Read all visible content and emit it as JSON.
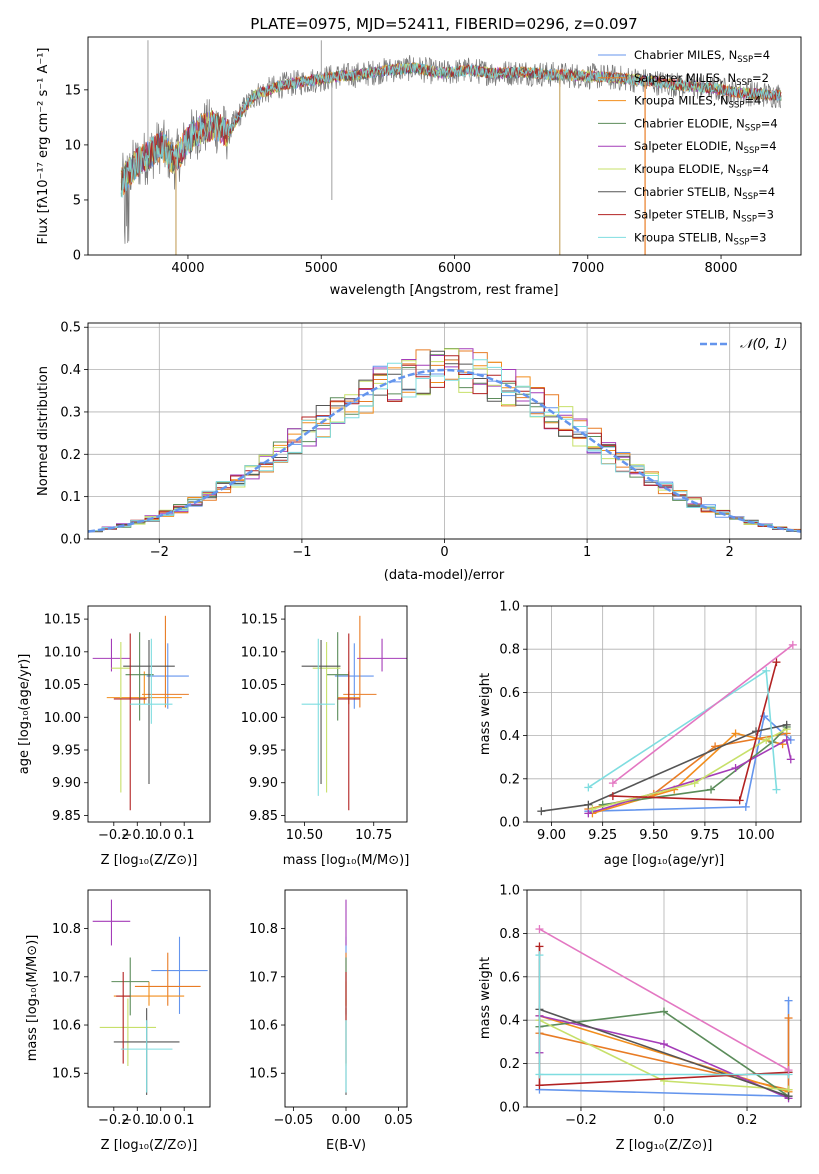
{
  "colors": [
    "#6495ed",
    "#e87c25",
    "#f28e1c",
    "#5b8c5a",
    "#a43cb8",
    "#c7e06a",
    "#555555",
    "#b22222",
    "#7fdde0"
  ],
  "chart_data": [
    {
      "type": "line",
      "id": "spectrum",
      "title": "PLATE=0975, MJD=52411, FIBERID=0296, z=0.097",
      "xlabel": "wavelength [Angstrom, rest frame]",
      "ylabel": "Flux [fλ10⁻¹⁷ erg cm⁻² s⁻¹ A⁻¹]",
      "xlim": [
        3250,
        8600
      ],
      "ylim": [
        0,
        19.8
      ],
      "xticks": [
        4000,
        5000,
        6000,
        7000,
        8000
      ],
      "yticks": [
        0,
        5,
        10,
        15
      ],
      "continuum": {
        "x": [
          3500,
          3600,
          3700,
          3800,
          3900,
          4000,
          4100,
          4200,
          4300,
          4400,
          4500,
          4700,
          4900,
          5100,
          5300,
          5500,
          5700,
          5900,
          6100,
          6300,
          6500,
          6700,
          6900,
          7100,
          7300,
          7500,
          7700,
          7900,
          8100,
          8300,
          8450
        ],
        "y": [
          6.5,
          8.2,
          9.0,
          10.0,
          8.5,
          10.5,
          11.5,
          11.8,
          11.0,
          13.0,
          14.5,
          15.4,
          15.8,
          16.2,
          16.4,
          16.8,
          17.0,
          16.5,
          16.8,
          16.5,
          16.6,
          16.4,
          16.3,
          16.2,
          16.0,
          15.7,
          15.4,
          15.2,
          14.8,
          14.6,
          14.5
        ]
      },
      "legend": [
        "Chabrier MILES, N_SSP=4",
        "Salpeter MILES, N_SSP=2",
        "Kroupa MILES, N_SSP=4",
        "Chabrier ELODIE, N_SSP=4",
        "Salpeter ELODIE, N_SSP=4",
        "Kroupa ELODIE, N_SSP=4",
        "Chabrier STELIB, N_SSP=4",
        "Salpeter STELIB, N_SSP=3",
        "Kroupa STELIB, N_SSP=3"
      ],
      "legend_placement": "upper-right"
    },
    {
      "type": "histogram",
      "id": "residuals",
      "xlabel": "(data-model)/error",
      "ylabel": "Normed distribution",
      "xlim": [
        -2.5,
        2.5
      ],
      "ylim": [
        0,
        0.51
      ],
      "xticks": [
        -2,
        -1,
        0,
        1,
        2
      ],
      "yticks": [
        0.0,
        0.1,
        0.2,
        0.3,
        0.4,
        0.5
      ],
      "legend": [
        "𝒩(0, 1)"
      ],
      "legend_placement": "upper-right",
      "grid": true
    },
    {
      "type": "scatter",
      "id": "age-vs-Z",
      "xlabel": "Z [log₁₀(Z/Z⊙)]",
      "ylabel": "age  [log₁₀(age/yr)]",
      "xlim": [
        -0.31,
        0.21
      ],
      "ylim": [
        9.84,
        10.17
      ],
      "xticks": [
        -0.2,
        -0.1,
        0.0,
        0.1
      ],
      "yticks": [
        9.85,
        9.9,
        9.95,
        10.0,
        10.05,
        10.1,
        10.15
      ],
      "points": [
        {
          "x": 0.03,
          "y": 10.063,
          "xerr": 0.09,
          "yerr": [
            0.05,
            0.05
          ]
        },
        {
          "x": 0.02,
          "y": 10.035,
          "xerr": 0.1,
          "yerr": [
            0.02,
            0.12
          ]
        },
        {
          "x": -0.07,
          "y": 10.03,
          "xerr": 0.16,
          "yerr": [
            0.01,
            0.04
          ]
        },
        {
          "x": -0.09,
          "y": 10.065,
          "xerr": 0.06,
          "yerr": [
            0.07,
            0.065
          ]
        },
        {
          "x": -0.21,
          "y": 10.09,
          "xerr": 0.08,
          "yerr": [
            0.02,
            0.03
          ]
        },
        {
          "x": -0.17,
          "y": 10.075,
          "xerr": 0.04,
          "yerr": [
            0.19,
            0.04
          ]
        },
        {
          "x": -0.05,
          "y": 10.078,
          "xerr": 0.11,
          "yerr": [
            0.18,
            0.04
          ]
        },
        {
          "x": -0.13,
          "y": 10.028,
          "xerr": 0.07,
          "yerr": [
            0.17,
            0.1
          ]
        },
        {
          "x": -0.04,
          "y": 10.02,
          "xerr": 0.09,
          "yerr": [
            0.03,
            0.1
          ]
        }
      ]
    },
    {
      "type": "scatter",
      "id": "age-vs-mass",
      "xlabel": "mass [log₁₀(M/M⊙)]",
      "xlim": [
        10.43,
        10.87
      ],
      "ylim": [
        9.84,
        10.17
      ],
      "xticks": [
        10.5,
        10.75
      ],
      "yticks": [
        9.85,
        9.9,
        9.95,
        10.0,
        10.05,
        10.1,
        10.15
      ],
      "points": [
        {
          "x": 10.68,
          "y": 10.063,
          "xerr": 0.07,
          "yerr": [
            0.05,
            0.05
          ]
        },
        {
          "x": 10.7,
          "y": 10.035,
          "xerr": 0.06,
          "yerr": [
            0.02,
            0.12
          ]
        },
        {
          "x": 10.66,
          "y": 10.03,
          "xerr": 0.04,
          "yerr": [
            0.01,
            0.04
          ]
        },
        {
          "x": 10.62,
          "y": 10.065,
          "xerr": 0.04,
          "yerr": [
            0.07,
            0.065
          ]
        },
        {
          "x": 10.78,
          "y": 10.09,
          "xerr": 0.09,
          "yerr": [
            0.02,
            0.03
          ]
        },
        {
          "x": 10.58,
          "y": 10.075,
          "xerr": 0.05,
          "yerr": [
            0.19,
            0.04
          ]
        },
        {
          "x": 10.56,
          "y": 10.078,
          "xerr": 0.07,
          "yerr": [
            0.18,
            0.04
          ]
        },
        {
          "x": 10.66,
          "y": 10.028,
          "xerr": 0.04,
          "yerr": [
            0.17,
            0.1
          ]
        },
        {
          "x": 10.55,
          "y": 10.02,
          "xerr": 0.06,
          "yerr": [
            0.14,
            0.1
          ]
        }
      ]
    },
    {
      "type": "line",
      "id": "weight-vs-age",
      "xlabel": "age  [log₁₀(age/yr)]",
      "ylabel": "mass weight",
      "xlim": [
        8.88,
        10.22
      ],
      "ylim": [
        0,
        1.0
      ],
      "xticks": [
        9.0,
        9.25,
        9.5,
        9.75,
        10.0
      ],
      "yticks": [
        0.0,
        0.2,
        0.4,
        0.6,
        0.8,
        1.0
      ],
      "grid": true,
      "series": [
        {
          "x": [
            9.18,
            9.95,
            10.04,
            10.17
          ],
          "y": [
            0.05,
            0.07,
            0.49,
            0.38
          ]
        },
        {
          "x": [
            9.18,
            9.5,
            9.8,
            10.15
          ],
          "y": [
            0.06,
            0.13,
            0.35,
            0.41
          ]
        },
        {
          "x": [
            9.2,
            9.6,
            9.9,
            10.13
          ],
          "y": [
            0.04,
            0.15,
            0.41,
            0.36
          ]
        },
        {
          "x": [
            9.25,
            9.78,
            10.08,
            10.15
          ],
          "y": [
            0.08,
            0.15,
            0.37,
            0.44
          ]
        },
        {
          "x": [
            9.18,
            9.9,
            10.15,
            10.17
          ],
          "y": [
            0.04,
            0.25,
            0.38,
            0.29
          ]
        },
        {
          "x": [
            9.2,
            9.7,
            10.05,
            10.15
          ],
          "y": [
            0.06,
            0.18,
            0.38,
            0.43
          ]
        },
        {
          "x": [
            8.95,
            9.18,
            10.0,
            10.15
          ],
          "y": [
            0.05,
            0.08,
            0.42,
            0.45
          ]
        },
        {
          "x": [
            9.3,
            9.92,
            10.1
          ],
          "y": [
            0.12,
            0.1,
            0.74
          ]
        },
        {
          "x": [
            9.18,
            10.05,
            10.1
          ],
          "y": [
            0.16,
            0.7,
            0.15
          ]
        },
        {
          "x": [
            9.3,
            10.18
          ],
          "y": [
            0.18,
            0.82
          ]
        }
      ]
    },
    {
      "type": "scatter",
      "id": "mass-vs-Z",
      "xlabel": "Z [log₁₀(Z/Z⊙)]",
      "ylabel": "mass [log₁₀(M/M⊙)]",
      "xlim": [
        -0.31,
        0.21
      ],
      "ylim": [
        10.43,
        10.88
      ],
      "xticks": [
        -0.2,
        -0.1,
        0.0,
        0.1
      ],
      "yticks": [
        10.5,
        10.6,
        10.7,
        10.8
      ],
      "points": [
        {
          "x": 0.08,
          "y": 10.713,
          "xerr": 0.12,
          "yerr": [
            0.09,
            0.07
          ]
        },
        {
          "x": 0.03,
          "y": 10.68,
          "xerr": 0.14,
          "yerr": [
            0.04,
            0.07
          ]
        },
        {
          "x": -0.05,
          "y": 10.66,
          "xerr": 0.15,
          "yerr": [
            0.02,
            0.03
          ]
        },
        {
          "x": -0.13,
          "y": 10.69,
          "xerr": 0.08,
          "yerr": [
            0.07,
            0.05
          ]
        },
        {
          "x": -0.21,
          "y": 10.815,
          "xerr": 0.08,
          "yerr": [
            0.05,
            0.045
          ]
        },
        {
          "x": -0.14,
          "y": 10.595,
          "xerr": 0.12,
          "yerr": [
            0.08,
            0.06
          ]
        },
        {
          "x": -0.06,
          "y": 10.565,
          "xerr": 0.14,
          "yerr": [
            0.11,
            0.07
          ]
        },
        {
          "x": -0.16,
          "y": 10.66,
          "xerr": 0.03,
          "yerr": [
            0.14,
            0.05
          ]
        },
        {
          "x": -0.06,
          "y": 10.55,
          "xerr": 0.11,
          "yerr": [
            0.09,
            0.06
          ]
        }
      ]
    },
    {
      "type": "scatter",
      "id": "mass-vs-EBV",
      "xlabel": "E(B-V)",
      "xlim": [
        -0.058,
        0.058
      ],
      "ylim": [
        10.43,
        10.88
      ],
      "xticks": [
        -0.05,
        0.0,
        0.05
      ],
      "yticks": [
        10.5,
        10.6,
        10.7,
        10.8
      ],
      "points": [
        {
          "x": 0,
          "y": 10.713,
          "xerr": 0,
          "yerr": [
            0.09,
            0.07
          ]
        },
        {
          "x": 0,
          "y": 10.68,
          "xerr": 0,
          "yerr": [
            0.04,
            0.07
          ]
        },
        {
          "x": 0,
          "y": 10.66,
          "xerr": 0,
          "yerr": [
            0.02,
            0.03
          ]
        },
        {
          "x": 0,
          "y": 10.69,
          "xerr": 0,
          "yerr": [
            0.07,
            0.05
          ]
        },
        {
          "x": 0,
          "y": 10.815,
          "xerr": 0,
          "yerr": [
            0.05,
            0.045
          ]
        },
        {
          "x": 0,
          "y": 10.595,
          "xerr": 0,
          "yerr": [
            0.08,
            0.06
          ]
        },
        {
          "x": 0,
          "y": 10.565,
          "xerr": 0,
          "yerr": [
            0.11,
            0.07
          ]
        },
        {
          "x": 0,
          "y": 10.66,
          "xerr": 0,
          "yerr": [
            0.14,
            0.05
          ]
        },
        {
          "x": 0,
          "y": 10.55,
          "xerr": 0,
          "yerr": [
            0.09,
            0.06
          ]
        }
      ]
    },
    {
      "type": "line",
      "id": "weight-vs-Z",
      "xlabel": "Z [log₁₀(Z/Z⊙)]",
      "ylabel": "mass weight",
      "xlim": [
        -0.33,
        0.33
      ],
      "ylim": [
        0,
        1.0
      ],
      "xticks": [
        -0.2,
        0.0,
        0.2
      ],
      "yticks": [
        0.0,
        0.2,
        0.4,
        0.6,
        0.8,
        1.0
      ],
      "grid": true,
      "series": [
        {
          "x": [
            -0.3,
            0.3,
            0.3,
            0.3
          ],
          "y": [
            0.08,
            0.05,
            0.16,
            0.49
          ]
        },
        {
          "x": [
            -0.3,
            0.3,
            0.3
          ],
          "y": [
            0.34,
            0.08,
            0.41
          ]
        },
        {
          "x": [
            -0.3,
            0.3
          ],
          "y": [
            0.42,
            0.07
          ]
        },
        {
          "x": [
            -0.3,
            0.0,
            0.3
          ],
          "y": [
            0.37,
            0.44,
            0.05
          ]
        },
        {
          "x": [
            -0.3,
            -0.3,
            0.0,
            0.3
          ],
          "y": [
            0.25,
            0.42,
            0.29,
            0.04
          ]
        },
        {
          "x": [
            -0.3,
            0.0,
            0.3
          ],
          "y": [
            0.4,
            0.12,
            0.08
          ]
        },
        {
          "x": [
            -0.3,
            0.3
          ],
          "y": [
            0.45,
            0.05
          ]
        },
        {
          "x": [
            -0.3,
            -0.3,
            0.3
          ],
          "y": [
            0.74,
            0.1,
            0.16
          ]
        },
        {
          "x": [
            -0.3,
            -0.3,
            0.3
          ],
          "y": [
            0.7,
            0.15,
            0.15
          ]
        },
        {
          "x": [
            -0.3,
            0.3
          ],
          "y": [
            0.82,
            0.17
          ]
        }
      ]
    }
  ]
}
